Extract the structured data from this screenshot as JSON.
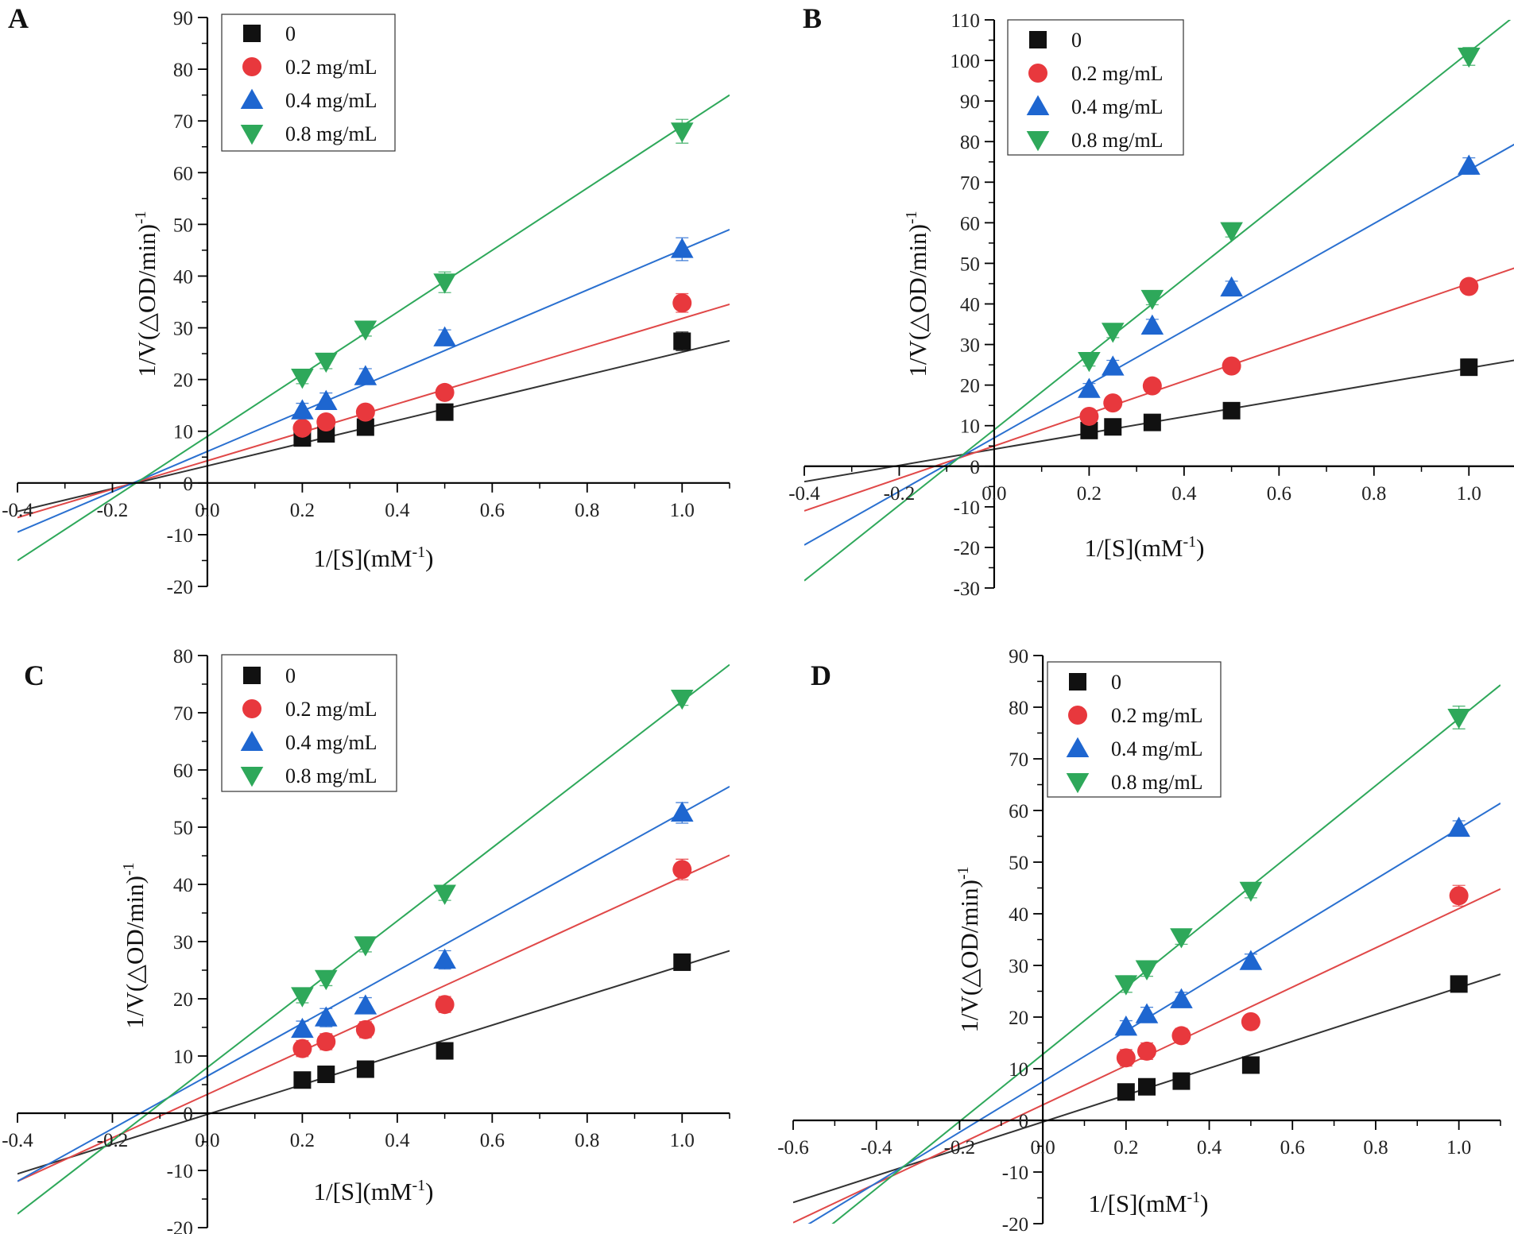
{
  "chart_data": [
    {
      "panel_label": "A",
      "type": "scatter",
      "title": "",
      "xlabel": "1/[S](mM",
      "xlabel_sup": "-1",
      "xlabel_end": ")",
      "ylabel": "1/V(△OD/min)",
      "ylabel_sup": "-1",
      "xlim": [
        -0.4,
        1.1
      ],
      "ylim": [
        -20,
        90
      ],
      "xticks": [
        -0.4,
        -0.2,
        0.0,
        0.2,
        0.4,
        0.6,
        0.8,
        1.0
      ],
      "xtick_labels": [
        "-0.4",
        "-0.2",
        "0.0",
        "0.2",
        "0.4",
        "0.6",
        "0.8",
        "1.0"
      ],
      "yticks": [
        -20,
        -10,
        0,
        10,
        20,
        30,
        40,
        50,
        60,
        70,
        80,
        90
      ],
      "ytick_labels": [
        "-20",
        "-10",
        "0",
        "10",
        "20",
        "30",
        "40",
        "50",
        "60",
        "70",
        "80",
        "90"
      ],
      "legend_position": "top-left",
      "x": [
        0.2,
        0.25,
        0.333,
        0.5,
        1.0
      ],
      "series": [
        {
          "name": "0",
          "marker": "square",
          "color": "#111111",
          "line_color": "#333333",
          "values": [
            8.7,
            9.5,
            10.8,
            13.7,
            27.4
          ],
          "errors": [
            1.5,
            1.3,
            1.5,
            1.5,
            1.8
          ],
          "fit": {
            "slope": 22.0,
            "intercept": 3.3
          }
        },
        {
          "name": "0.2 mg/mL",
          "marker": "circle",
          "color": "#e8383d",
          "line_color": "#e04848",
          "values": [
            10.6,
            11.8,
            13.7,
            17.5,
            34.8
          ],
          "errors": [
            1.3,
            1.3,
            1.3,
            1.3,
            1.8
          ],
          "fit": {
            "slope": 27.5,
            "intercept": 4.3
          }
        },
        {
          "name": "0.4 mg/mL",
          "marker": "triangle-up",
          "color": "#1e66d0",
          "line_color": "#2a70d0",
          "values": [
            14.0,
            15.8,
            20.6,
            28.1,
            45.2
          ],
          "errors": [
            1.4,
            1.6,
            1.5,
            1.5,
            2.2
          ],
          "fit": {
            "slope": 39.0,
            "intercept": 6.1
          }
        },
        {
          "name": "0.8 mg/mL",
          "marker": "triangle-down",
          "color": "#2ea85a",
          "line_color": "#2ea85a",
          "values": [
            20.4,
            23.5,
            29.7,
            38.8,
            68.0
          ],
          "errors": [
            1.2,
            1.4,
            1.3,
            2.0,
            2.3
          ],
          "fit": {
            "slope": 60.0,
            "intercept": 9.0
          }
        }
      ]
    },
    {
      "panel_label": "B",
      "type": "scatter",
      "title": "",
      "xlabel": "1/[S](mM",
      "xlabel_sup": "-1",
      "xlabel_end": ")",
      "ylabel": "1/V(△OD/min)",
      "ylabel_sup": "-1",
      "xlim": [
        -0.4,
        1.1
      ],
      "ylim": [
        -30,
        110
      ],
      "xticks": [
        -0.4,
        -0.2,
        0.0,
        0.2,
        0.4,
        0.6,
        0.8,
        1.0
      ],
      "xtick_labels": [
        "-0.4",
        "-0.2",
        "0.0",
        "0.2",
        "0.4",
        "0.6",
        "0.8",
        "1.0"
      ],
      "yticks": [
        -30,
        -20,
        -10,
        0,
        10,
        20,
        30,
        40,
        50,
        60,
        70,
        80,
        90,
        100,
        110
      ],
      "ytick_labels": [
        "-30",
        "-20",
        "-10",
        "0",
        "10",
        "20",
        "30",
        "40",
        "50",
        "60",
        "70",
        "80",
        "90",
        "100",
        "110"
      ],
      "legend_position": "top-left",
      "x": [
        0.2,
        0.25,
        0.333,
        0.5,
        1.0
      ],
      "series": [
        {
          "name": "0",
          "marker": "square",
          "color": "#111111",
          "line_color": "#333333",
          "values": [
            8.8,
            9.7,
            10.8,
            13.7,
            24.4
          ],
          "errors": [
            1.5,
            1.5,
            1.3,
            1.8,
            2.0
          ],
          "fit": {
            "slope": 20.0,
            "intercept": 4.2
          }
        },
        {
          "name": "0.2 mg/mL",
          "marker": "circle",
          "color": "#e8383d",
          "line_color": "#e04848",
          "values": [
            12.3,
            15.6,
            19.8,
            24.7,
            44.3
          ],
          "errors": [
            1.2,
            1.2,
            1.2,
            1.2,
            1.6
          ],
          "fit": {
            "slope": 40.0,
            "intercept": 5.0
          }
        },
        {
          "name": "0.4 mg/mL",
          "marker": "triangle-up",
          "color": "#1e66d0",
          "line_color": "#2a70d0",
          "values": [
            19.0,
            24.5,
            34.6,
            44.0,
            74.0
          ],
          "errors": [
            1.4,
            1.6,
            1.6,
            1.6,
            2.0
          ],
          "fit": {
            "slope": 66.0,
            "intercept": 7.0
          }
        },
        {
          "name": "0.8 mg/mL",
          "marker": "triangle-down",
          "color": "#2ea85a",
          "line_color": "#2ea85a",
          "values": [
            26.0,
            33.2,
            41.3,
            58.0,
            101.0
          ],
          "errors": [
            1.3,
            1.5,
            1.5,
            1.5,
            2.2
          ],
          "fit": {
            "slope": 93.0,
            "intercept": 9.0
          }
        }
      ]
    },
    {
      "panel_label": "C",
      "type": "scatter",
      "title": "",
      "xlabel": "1/[S](mM",
      "xlabel_sup": "-1",
      "xlabel_end": ")",
      "ylabel": "1/V(△OD/min)",
      "ylabel_sup": "-1",
      "xlim": [
        -0.4,
        1.1
      ],
      "ylim": [
        -20,
        80
      ],
      "xticks": [
        -0.4,
        -0.2,
        0.0,
        0.2,
        0.4,
        0.6,
        0.8,
        1.0
      ],
      "xtick_labels": [
        "-0.4",
        "-0.2",
        "0.0",
        "0.2",
        "0.4",
        "0.6",
        "0.8",
        "1.0"
      ],
      "yticks": [
        -20,
        -10,
        0,
        10,
        20,
        30,
        40,
        50,
        60,
        70,
        80
      ],
      "ytick_labels": [
        "-20",
        "-10",
        "0",
        "10",
        "20",
        "30",
        "40",
        "50",
        "60",
        "70",
        "80"
      ],
      "legend_position": "top-left",
      "x": [
        0.2,
        0.25,
        0.333,
        0.5,
        1.0
      ],
      "series": [
        {
          "name": "0",
          "marker": "square",
          "color": "#111111",
          "line_color": "#333333",
          "values": [
            5.8,
            6.8,
            7.7,
            10.9,
            26.4
          ],
          "errors": [
            1.4,
            1.0,
            1.0,
            1.4,
            1.2
          ],
          "fit": {
            "slope": 26.0,
            "intercept": -0.2
          }
        },
        {
          "name": "0.2 mg/mL",
          "marker": "circle",
          "color": "#e8383d",
          "line_color": "#e04848",
          "values": [
            11.3,
            12.5,
            14.6,
            19.0,
            42.6
          ],
          "errors": [
            1.4,
            1.4,
            1.4,
            1.4,
            1.8
          ],
          "fit": {
            "slope": 38.0,
            "intercept": 3.3
          }
        },
        {
          "name": "0.4 mg/mL",
          "marker": "triangle-up",
          "color": "#1e66d0",
          "line_color": "#2a70d0",
          "values": [
            14.7,
            16.7,
            18.8,
            26.8,
            52.5
          ],
          "errors": [
            1.4,
            1.6,
            1.4,
            1.6,
            1.8
          ],
          "fit": {
            "slope": 46.0,
            "intercept": 6.5
          }
        },
        {
          "name": "0.8 mg/mL",
          "marker": "triangle-down",
          "color": "#2ea85a",
          "line_color": "#2ea85a",
          "values": [
            20.5,
            23.5,
            29.4,
            38.4,
            72.5
          ],
          "errors": [
            1.2,
            1.2,
            1.2,
            1.2,
            1.2
          ],
          "fit": {
            "slope": 64.0,
            "intercept": 8.0
          }
        }
      ]
    },
    {
      "panel_label": "D",
      "type": "scatter",
      "title": "",
      "xlabel": "1/[S](mM",
      "xlabel_sup": "-1",
      "xlabel_end": ")",
      "ylabel": "1/V(△OD/min)",
      "ylabel_sup": "-1",
      "xlim": [
        -0.6,
        1.1
      ],
      "ylim": [
        -20,
        90
      ],
      "xticks": [
        -0.6,
        -0.4,
        -0.2,
        0.0,
        0.2,
        0.4,
        0.6,
        0.8,
        1.0
      ],
      "xtick_labels": [
        "-0.6",
        "-0.4",
        "-0.2",
        "0.0",
        "0.2",
        "0.4",
        "0.6",
        "0.8",
        "1.0"
      ],
      "yticks": [
        -20,
        -10,
        0,
        10,
        20,
        30,
        40,
        50,
        60,
        70,
        80,
        90
      ],
      "ytick_labels": [
        "-20",
        "-10",
        "0",
        "10",
        "20",
        "30",
        "40",
        "50",
        "60",
        "70",
        "80",
        "90"
      ],
      "legend_position": "top-left",
      "x": [
        0.2,
        0.25,
        0.333,
        0.5,
        1.0
      ],
      "series": [
        {
          "name": "0",
          "marker": "square",
          "color": "#111111",
          "line_color": "#333333",
          "values": [
            5.5,
            6.5,
            7.6,
            10.7,
            26.4
          ],
          "errors": [
            1.0,
            1.0,
            1.0,
            1.2,
            1.2
          ],
          "fit": {
            "slope": 26.0,
            "intercept": -0.3
          }
        },
        {
          "name": "0.2 mg/mL",
          "marker": "circle",
          "color": "#e8383d",
          "line_color": "#e04848",
          "values": [
            12.1,
            13.4,
            16.4,
            19.1,
            43.5
          ],
          "errors": [
            1.6,
            1.6,
            1.4,
            1.2,
            2.0
          ],
          "fit": {
            "slope": 38.0,
            "intercept": 3.0
          }
        },
        {
          "name": "0.4 mg/mL",
          "marker": "triangle-up",
          "color": "#1e66d0",
          "line_color": "#2a70d0",
          "values": [
            18.1,
            20.5,
            23.4,
            30.8,
            56.6
          ],
          "errors": [
            1.2,
            1.4,
            1.4,
            1.4,
            1.4
          ],
          "fit": {
            "slope": 49.0,
            "intercept": 7.5
          }
        },
        {
          "name": "0.8 mg/mL",
          "marker": "triangle-down",
          "color": "#2ea85a",
          "line_color": "#2ea85a",
          "values": [
            26.4,
            29.3,
            35.5,
            44.5,
            78.0
          ],
          "errors": [
            1.6,
            1.4,
            1.4,
            1.4,
            2.2
          ],
          "fit": {
            "slope": 65.0,
            "intercept": 12.8
          }
        }
      ]
    }
  ]
}
